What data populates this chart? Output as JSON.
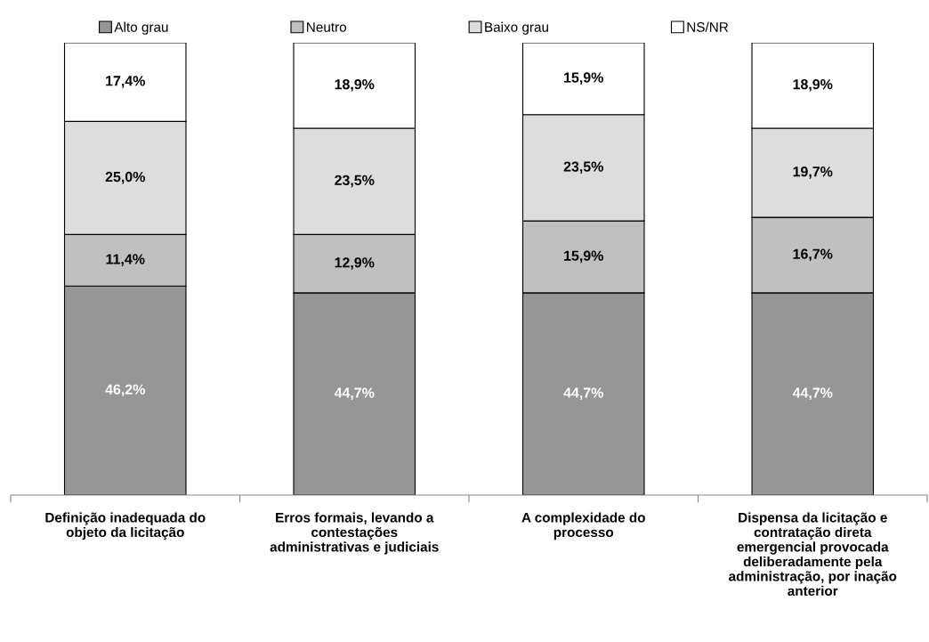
{
  "chart_data": {
    "type": "bar",
    "stacked": true,
    "legend": "top",
    "categories": [
      "Definição inadequada do\nobjeto da licitação",
      "Erros formais, levando a\ncontestações\nadministrativas e judiciais",
      "A complexidade do\nprocesso",
      "Dispensa da licitação e\ncontratação direta\nemergencial provocada\ndeliberadamente pela\nadministração, por inação\nanterior"
    ],
    "series": [
      {
        "name": "Alto grau",
        "color": "#969696",
        "values": [
          46.2,
          44.7,
          44.7,
          44.7
        ],
        "value_labels": [
          "46,2%",
          "44,7%",
          "44,7%",
          "44,7%"
        ]
      },
      {
        "name": "Neutro",
        "color": "#c0c0c0",
        "values": [
          11.4,
          12.9,
          15.9,
          16.7
        ],
        "value_labels": [
          "11,4%",
          "12,9%",
          "15,9%",
          "16,7%"
        ]
      },
      {
        "name": "Baixo grau",
        "color": "#dddddd",
        "values": [
          25.0,
          23.5,
          23.5,
          19.7
        ],
        "value_labels": [
          "25,0%",
          "23,5%",
          "23,5%",
          "19,7%"
        ]
      },
      {
        "name": "NS/NR",
        "color": "#ffffff",
        "values": [
          17.4,
          18.9,
          15.9,
          18.9
        ],
        "value_labels": [
          "17,4%",
          "18,9%",
          "15,9%",
          "18,9%"
        ]
      }
    ]
  }
}
